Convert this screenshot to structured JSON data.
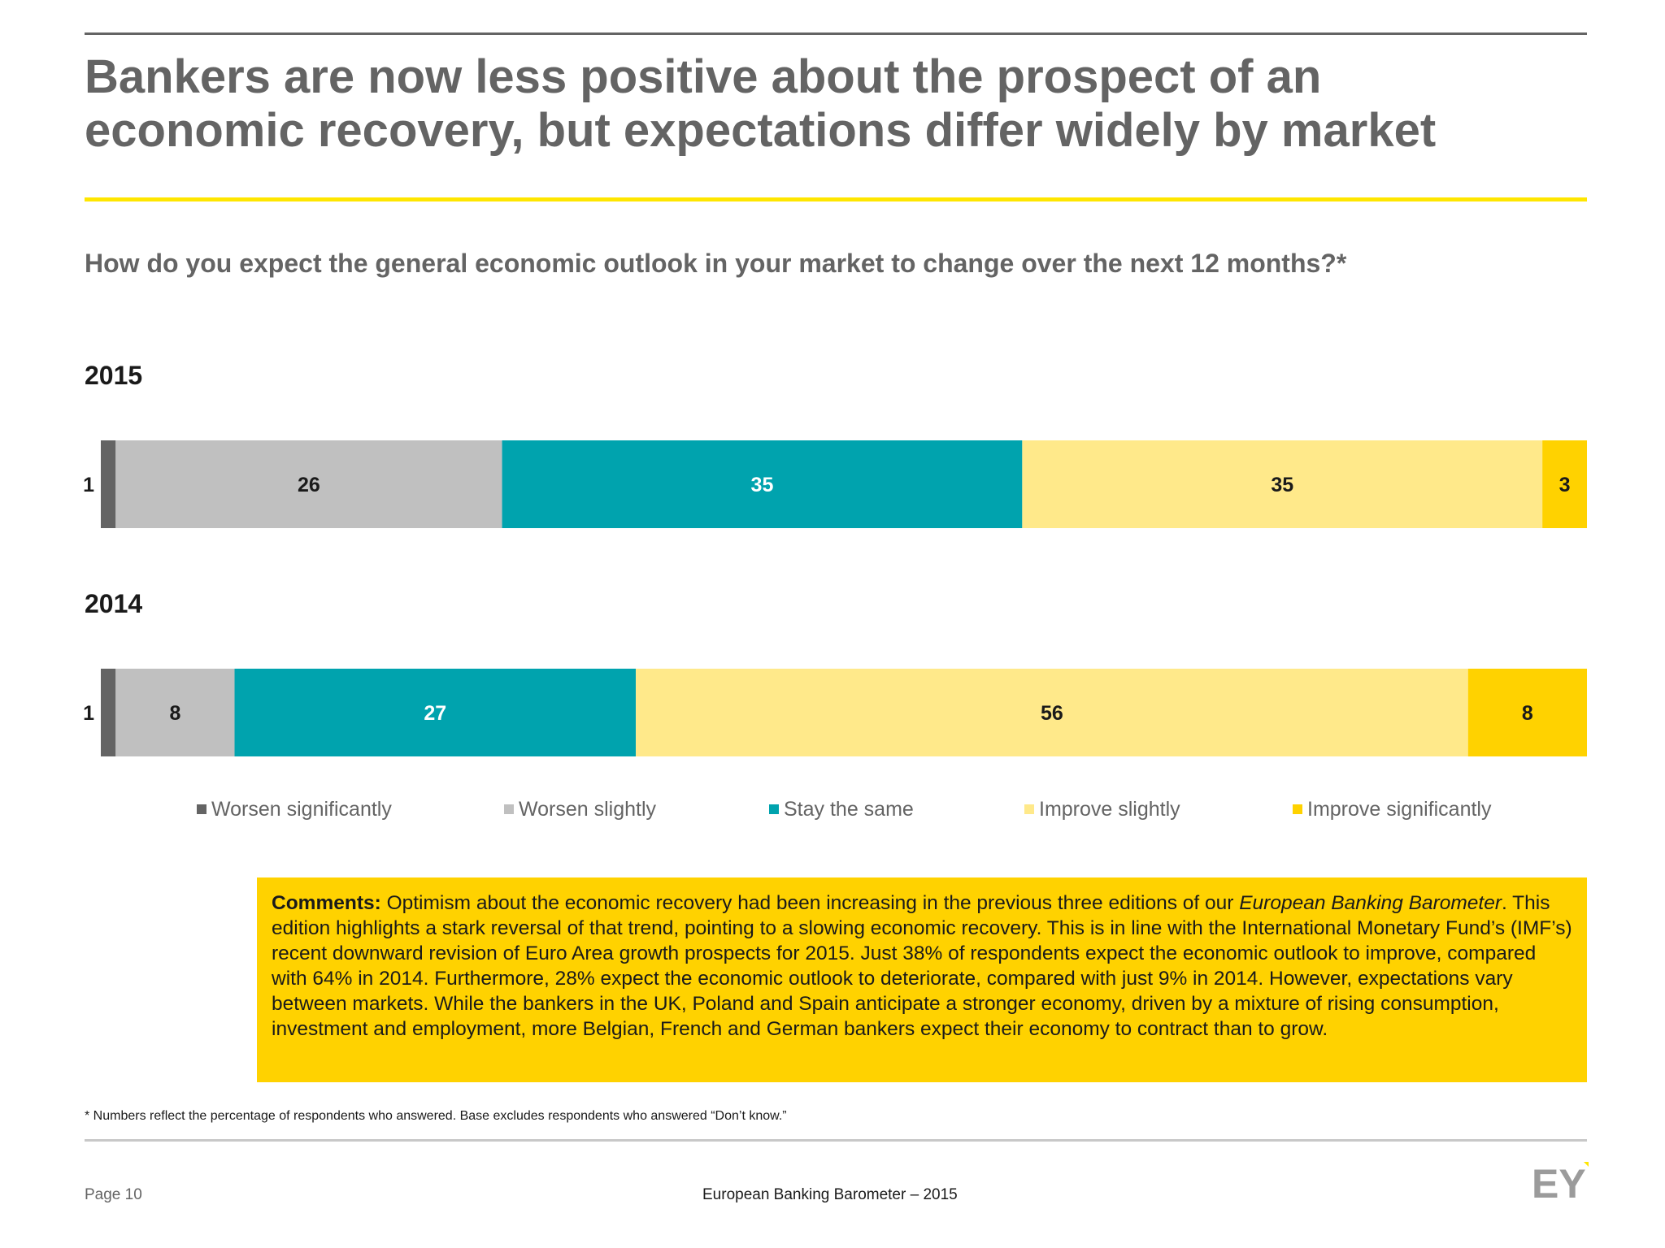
{
  "header": {
    "title_line1": "Bankers are now less positive about the prospect of an",
    "title_line2": "economic recovery, but expectations differ widely by market",
    "question": "How do you expect the general economic outlook in your market to change over the next 12 months?*"
  },
  "chart_data": {
    "type": "bar",
    "orientation": "horizontal-stacked",
    "categories": [
      "2015",
      "2014"
    ],
    "series": [
      {
        "name": "Worsen significantly",
        "color": "#646464",
        "values": [
          1,
          1
        ]
      },
      {
        "name": "Worsen slightly",
        "color": "#c0c0c0",
        "values": [
          26,
          8
        ]
      },
      {
        "name": "Stay the same",
        "color": "#00a3ae",
        "values": [
          35,
          27
        ]
      },
      {
        "name": "Improve slightly",
        "color": "#ffe98a",
        "values": [
          35,
          56
        ]
      },
      {
        "name": "Improve significantly",
        "color": "#ffd200",
        "values": [
          3,
          8
        ]
      }
    ],
    "labels": [
      [
        "1",
        "26",
        "35",
        "35",
        "3"
      ],
      [
        "1",
        "8",
        "27",
        "56",
        "8"
      ]
    ],
    "legend_position": "bottom",
    "grid": false
  },
  "comments": {
    "heading": "Comments:",
    "text_a": " Optimism about the economic recovery had been increasing in the previous three editions of our ",
    "publication": "European Banking Barometer",
    "text_b": ". This edition highlights a stark reversal of that trend, pointing to a slowing economic recovery. This is in line with the International Monetary Fund’s (IMF’s) recent downward revision of Euro Area growth prospects for 2015. Just 38% of respondents expect the economic outlook to improve, compared with 64% in 2014. Furthermore, 28% expect the economic outlook to deteriorate, compared with just 9% in 2014. However, expectations vary between markets. While the bankers in the UK, Poland and Spain anticipate a stronger economy, driven by a mixture of rising consumption, investment and employment, more Belgian, French and German bankers expect their economy to contract than to grow."
  },
  "footnote": "* Numbers reflect the percentage of respondents who answered. Base excludes respondents who answered “Don’t know.”",
  "footer": {
    "page": "Page 10",
    "center": "European Banking Barometer – 2015",
    "logo": "EY"
  }
}
